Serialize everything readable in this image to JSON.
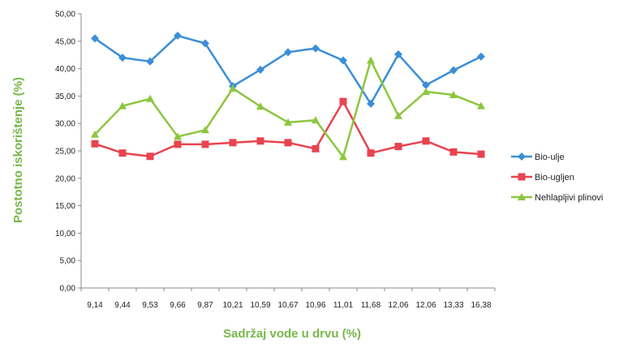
{
  "chart_data": {
    "type": "line",
    "xlabel": "Sadržaj vode u drvu (%)",
    "ylabel": "Postotno iskorištenje (%)",
    "ylim": [
      0,
      50
    ],
    "ytick_step": 5,
    "ytick_labels": [
      "0,00",
      "5,00",
      "10,00",
      "15,00",
      "20,00",
      "25,00",
      "30,00",
      "35,00",
      "40,00",
      "45,00",
      "50,00"
    ],
    "categories": [
      "9,14",
      "9,44",
      "9,53",
      "9,66",
      "9,87",
      "10,21",
      "10,59",
      "10,67",
      "10,96",
      "11,01",
      "11,68",
      "12,06",
      "12,06",
      "13,33",
      "16,38"
    ],
    "grid": false,
    "legend_position": "right",
    "series": [
      {
        "name": "Bio-ulje",
        "color": "#3a8fd6",
        "marker": "diamond",
        "values": [
          45.5,
          42.0,
          41.3,
          46.0,
          44.6,
          36.8,
          39.8,
          43.0,
          43.7,
          41.5,
          33.6,
          42.6,
          37.0,
          39.7,
          42.2
        ]
      },
      {
        "name": "Bio-ugljen",
        "color": "#e8434f",
        "marker": "square",
        "values": [
          26.3,
          24.6,
          24.0,
          26.2,
          26.2,
          26.5,
          26.8,
          26.5,
          25.4,
          34.0,
          24.6,
          25.8,
          26.8,
          24.8,
          24.4
        ]
      },
      {
        "name": "Nehlapljivi plinovi",
        "color": "#8cc63f",
        "marker": "triangle",
        "values": [
          28.0,
          33.2,
          34.5,
          27.6,
          28.8,
          36.4,
          33.1,
          30.2,
          30.6,
          23.9,
          41.5,
          31.4,
          35.8,
          35.2,
          33.2
        ]
      }
    ]
  }
}
